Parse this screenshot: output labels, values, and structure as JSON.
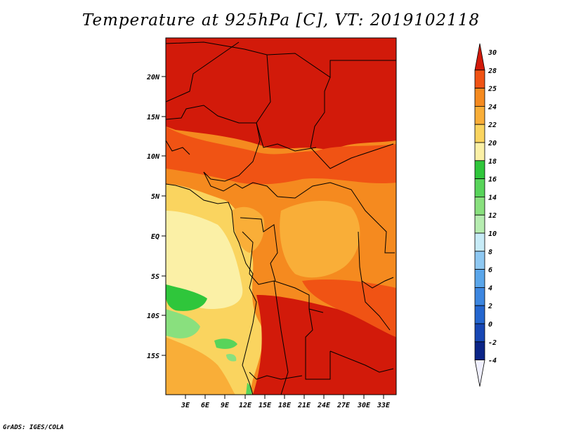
{
  "title": "Temperature at 925hPa [C], VT: 2019102118",
  "credit": "GrADS: IGES/COLA",
  "map": {
    "variable": "Temperature at 925hPa",
    "units": "C",
    "valid_time": "2019102118",
    "lon_range": [
      0,
      35
    ],
    "lat_range": [
      -20,
      24
    ],
    "lon_ticks": [
      "3E",
      "6E",
      "9E",
      "12E",
      "15E",
      "18E",
      "21E",
      "24E",
      "27E",
      "30E",
      "33E"
    ],
    "lat_ticks": [
      "20N",
      "15N",
      "10N",
      "5N",
      "EQ",
      "5S",
      "10S",
      "15S"
    ]
  },
  "colorbar": {
    "levels": [
      "30",
      "28",
      "25",
      "24",
      "22",
      "20",
      "18",
      "16",
      "14",
      "12",
      "10",
      "8",
      "6",
      "4",
      "2",
      "0",
      "-2",
      "-4"
    ],
    "colors": [
      "#d21a0a",
      "#f05314",
      "#f58a1f",
      "#f9ae38",
      "#fad45f",
      "#fbf0a6",
      "#2fc63b",
      "#58d45a",
      "#89e07e",
      "#b6ecb0",
      "#c7ebf7",
      "#8ec8f2",
      "#5aa6ea",
      "#3c86e0",
      "#2466cf",
      "#1747b4",
      "#0b2487",
      "#f0f0ff"
    ]
  }
}
